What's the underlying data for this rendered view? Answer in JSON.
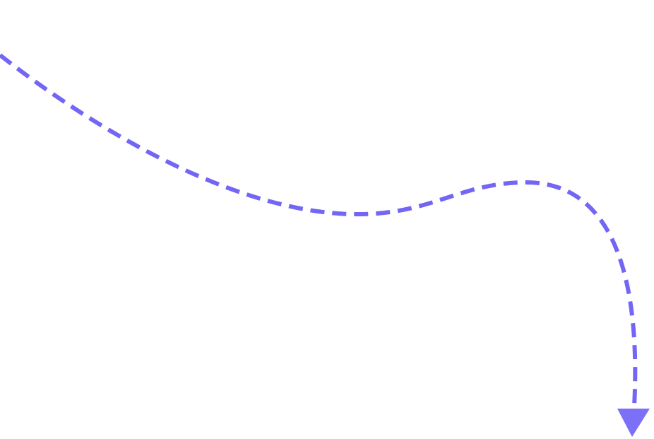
{
  "diagram": {
    "connector": {
      "style": "dashed",
      "shape": "curved",
      "arrowhead": "triangle",
      "direction": "down",
      "color": "#7366f5",
      "arrowhead_color": "#7b70f7"
    },
    "background_color": "#ffffff"
  }
}
